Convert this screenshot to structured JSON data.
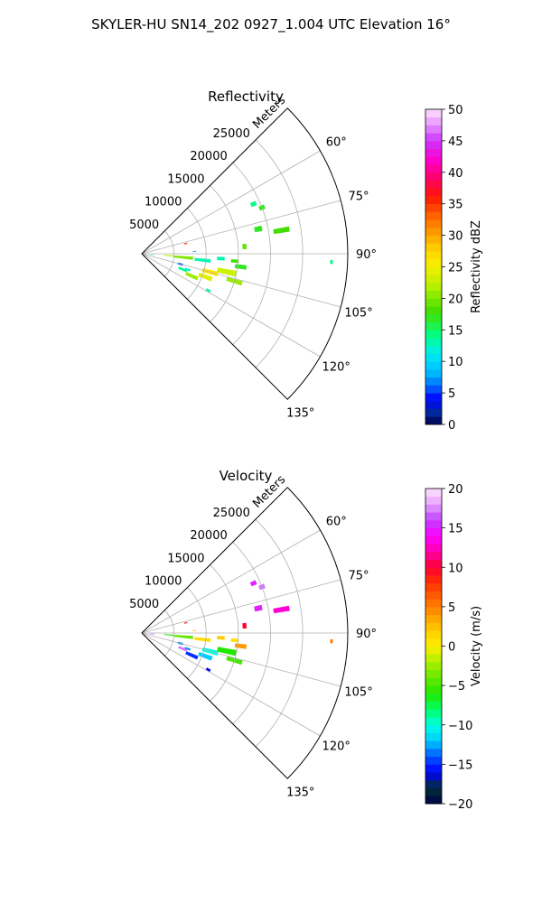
{
  "figure": {
    "title": "SKYLER-HU  SN14_202  0927_1.004 UTC Elevation 16°"
  },
  "chart_data": [
    {
      "type": "polar-sector",
      "title": "Reflectivity",
      "range_label": "Meters",
      "azimuth_range_deg": [
        45,
        135
      ],
      "range_max_m": 32000,
      "range_ticks": [
        5000,
        10000,
        15000,
        20000,
        25000
      ],
      "range_tick_labels": [
        "5000",
        "10000",
        "15000",
        "20000",
        "25000"
      ],
      "azimuth_ticks": [
        60,
        75,
        90,
        105,
        120,
        135
      ],
      "azimuth_tick_labels": [
        "60°",
        "75°",
        "90°",
        "105°",
        "120°",
        "135°"
      ],
      "grid": true,
      "colorbar": {
        "label": "Reflectivity dBZ",
        "min": 0,
        "max": 50,
        "ticks": [
          0,
          5,
          10,
          15,
          20,
          25,
          30,
          35,
          40,
          45,
          50
        ],
        "tick_labels": [
          "0",
          "5",
          "10",
          "15",
          "20",
          "25",
          "30",
          "35",
          "40",
          "45",
          "50"
        ]
      },
      "cells": [
        {
          "az": 66.0,
          "r": 19000,
          "dr": 900,
          "daz": 2.0,
          "v": 14
        },
        {
          "az": 69.0,
          "r": 20000,
          "dr": 900,
          "daz": 2.0,
          "v": 17
        },
        {
          "az": 78.0,
          "r": 18500,
          "dr": 1200,
          "daz": 2.5,
          "v": 17
        },
        {
          "az": 80.5,
          "r": 22000,
          "dr": 2500,
          "daz": 2.0,
          "v": 18
        },
        {
          "az": 77.0,
          "r": 7000,
          "dr": 500,
          "daz": 1.5,
          "v": 35
        },
        {
          "az": 86.0,
          "r": 16000,
          "dr": 600,
          "daz": 3.0,
          "v": 19
        },
        {
          "az": 87.5,
          "r": 8200,
          "dr": 500,
          "daz": 1.0,
          "v": 8
        },
        {
          "az": 92.5,
          "r": 29500,
          "dr": 400,
          "daz": 1.2,
          "v": 14
        },
        {
          "az": 95.0,
          "r": 1600,
          "dr": 700,
          "daz": 2.5,
          "v": 12
        },
        {
          "az": 94.0,
          "r": 4200,
          "dr": 1500,
          "daz": 2.0,
          "v": 22
        },
        {
          "az": 95.0,
          "r": 6500,
          "dr": 3000,
          "daz": 3.5,
          "v": 20
        },
        {
          "az": 96.0,
          "r": 9500,
          "dr": 2500,
          "daz": 3.0,
          "v": 13
        },
        {
          "az": 93.5,
          "r": 12300,
          "dr": 1200,
          "daz": 2.5,
          "v": 13
        },
        {
          "az": 94.5,
          "r": 14500,
          "dr": 1200,
          "daz": 2.0,
          "v": 18
        },
        {
          "az": 105.0,
          "r": 6200,
          "dr": 800,
          "daz": 3.0,
          "v": 6
        },
        {
          "az": 109.0,
          "r": 7500,
          "dr": 900,
          "daz": 2.5,
          "v": 12
        },
        {
          "az": 111.0,
          "r": 6800,
          "dr": 1400,
          "daz": 3.0,
          "v": 14
        },
        {
          "az": 114.0,
          "r": 8500,
          "dr": 2000,
          "daz": 3.5,
          "v": 21
        },
        {
          "az": 110.0,
          "r": 10500,
          "dr": 2200,
          "daz": 3.5,
          "v": 24
        },
        {
          "az": 105.0,
          "r": 11000,
          "dr": 2500,
          "daz": 3.5,
          "v": 26
        },
        {
          "az": 102.0,
          "r": 13500,
          "dr": 3000,
          "daz": 3.5,
          "v": 23
        },
        {
          "az": 106.5,
          "r": 15000,
          "dr": 2500,
          "daz": 2.5,
          "v": 21
        },
        {
          "az": 97.5,
          "r": 15500,
          "dr": 1800,
          "daz": 2.5,
          "v": 17
        },
        {
          "az": 119.0,
          "r": 11800,
          "dr": 700,
          "daz": 2.0,
          "v": 13
        }
      ]
    },
    {
      "type": "polar-sector",
      "title": "Velocity",
      "range_label": "Meters",
      "azimuth_range_deg": [
        45,
        135
      ],
      "range_max_m": 32000,
      "range_ticks": [
        5000,
        10000,
        15000,
        20000,
        25000
      ],
      "range_tick_labels": [
        "5000",
        "10000",
        "15000",
        "20000",
        "25000"
      ],
      "azimuth_ticks": [
        60,
        75,
        90,
        105,
        120,
        135
      ],
      "azimuth_tick_labels": [
        "60°",
        "75°",
        "90°",
        "105°",
        "120°",
        "135°"
      ],
      "grid": true,
      "colorbar": {
        "label": "Velocity (m/s)",
        "min": -20,
        "max": 20,
        "ticks": [
          -20,
          -15,
          -10,
          -5,
          0,
          5,
          10,
          15,
          20
        ],
        "tick_labels": [
          "−20",
          "−15",
          "−10",
          "−5",
          "0",
          "5",
          "10",
          "15",
          "20"
        ]
      },
      "cells": [
        {
          "az": 66.0,
          "r": 19000,
          "dr": 900,
          "daz": 2.0,
          "v": 15
        },
        {
          "az": 69.0,
          "r": 20000,
          "dr": 900,
          "daz": 2.0,
          "v": 17
        },
        {
          "az": 78.0,
          "r": 18500,
          "dr": 1200,
          "daz": 2.5,
          "v": 15
        },
        {
          "az": 80.5,
          "r": 22000,
          "dr": 2500,
          "daz": 2.0,
          "v": 13
        },
        {
          "az": 77.0,
          "r": 7000,
          "dr": 500,
          "daz": 1.5,
          "v": 9
        },
        {
          "az": 86.0,
          "r": 16000,
          "dr": 600,
          "daz": 3.0,
          "v": 10
        },
        {
          "az": 87.5,
          "r": 8200,
          "dr": 500,
          "daz": 1.0,
          "v": 2
        },
        {
          "az": 92.5,
          "r": 29500,
          "dr": 400,
          "daz": 1.2,
          "v": 5
        },
        {
          "az": 95.0,
          "r": 1600,
          "dr": 700,
          "daz": 2.5,
          "v": 16
        },
        {
          "az": 94.0,
          "r": 4200,
          "dr": 1500,
          "daz": 2.0,
          "v": -6
        },
        {
          "az": 95.0,
          "r": 6500,
          "dr": 3000,
          "daz": 3.5,
          "v": -4
        },
        {
          "az": 96.0,
          "r": 9500,
          "dr": 2500,
          "daz": 3.0,
          "v": 1
        },
        {
          "az": 93.5,
          "r": 12300,
          "dr": 1200,
          "daz": 2.5,
          "v": 2
        },
        {
          "az": 94.5,
          "r": 14500,
          "dr": 1200,
          "daz": 2.0,
          "v": 1
        },
        {
          "az": 105.0,
          "r": 6200,
          "dr": 800,
          "daz": 3.0,
          "v": -13
        },
        {
          "az": 109.0,
          "r": 7500,
          "dr": 900,
          "daz": 2.5,
          "v": -13
        },
        {
          "az": 111.0,
          "r": 6800,
          "dr": 1400,
          "daz": 3.0,
          "v": 17
        },
        {
          "az": 114.0,
          "r": 8500,
          "dr": 2000,
          "daz": 3.5,
          "v": -15
        },
        {
          "az": 110.0,
          "r": 10500,
          "dr": 2200,
          "daz": 3.5,
          "v": -12
        },
        {
          "az": 105.0,
          "r": 11000,
          "dr": 2500,
          "daz": 3.5,
          "v": -10
        },
        {
          "az": 102.0,
          "r": 13500,
          "dr": 3000,
          "daz": 3.5,
          "v": -6
        },
        {
          "az": 106.5,
          "r": 15000,
          "dr": 2500,
          "daz": 2.5,
          "v": -5
        },
        {
          "az": 97.5,
          "r": 15500,
          "dr": 1800,
          "daz": 2.5,
          "v": 4
        },
        {
          "az": 119.0,
          "r": 11800,
          "dr": 700,
          "daz": 2.0,
          "v": -16
        }
      ]
    }
  ]
}
